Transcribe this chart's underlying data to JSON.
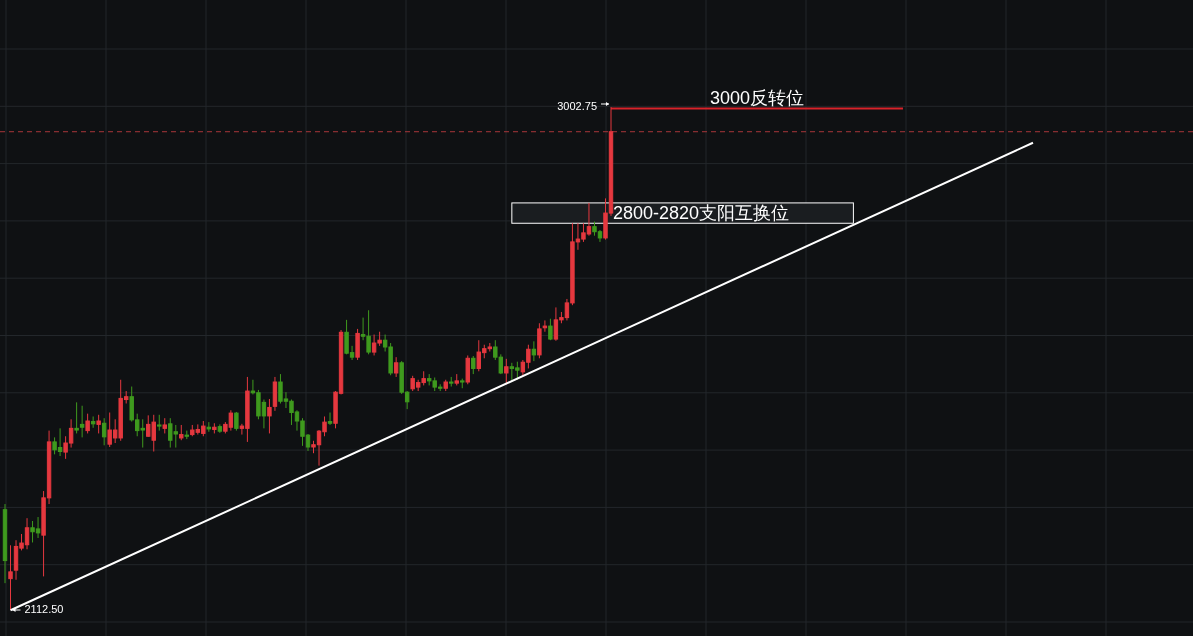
{
  "chart_data": {
    "type": "candlestick",
    "categories": [
      null,
      null,
      null,
      null,
      null,
      null,
      null,
      null,
      null,
      null,
      null,
      null,
      null,
      null,
      null,
      null,
      null,
      null,
      null,
      null,
      null,
      null,
      null,
      null,
      null,
      null,
      null,
      null,
      null,
      null,
      null,
      null,
      null,
      null,
      null,
      null,
      null,
      null,
      null,
      null,
      null,
      null,
      null,
      null,
      null,
      null,
      null,
      null,
      null,
      null,
      null,
      null,
      null,
      null,
      null,
      null,
      null,
      null,
      null,
      null,
      null,
      null,
      null,
      null,
      null,
      null,
      null,
      null,
      null,
      null,
      null,
      null,
      null,
      null,
      null,
      null,
      null,
      null,
      null,
      null,
      null,
      null,
      null,
      null,
      null,
      null,
      null,
      null,
      null,
      null,
      null,
      null,
      null,
      null,
      null,
      null,
      null,
      null,
      null,
      null,
      null,
      null,
      null,
      null,
      null,
      null,
      null,
      null,
      null,
      null,
      null
    ],
    "ohlc": [
      [
        2290,
        2300,
        2160,
        2200
      ],
      [
        2168,
        2227,
        2112.5,
        2180
      ],
      [
        2183,
        2236,
        2166,
        2225
      ],
      [
        2222,
        2247,
        2218,
        2231
      ],
      [
        2228,
        2275,
        2220,
        2258
      ],
      [
        2258,
        2270,
        2232,
        2251
      ],
      [
        2256,
        2277,
        2240,
        2249
      ],
      [
        2245,
        2323,
        2172,
        2311
      ],
      [
        2311,
        2430,
        2300,
        2410
      ],
      [
        2410,
        2418,
        2388,
        2396
      ],
      [
        2400,
        2434,
        2385,
        2393
      ],
      [
        2392,
        2420,
        2380,
        2408
      ],
      [
        2408,
        2450,
        2400,
        2434
      ],
      [
        2434,
        2480,
        2425,
        2431
      ],
      [
        2441,
        2474,
        2418,
        2436
      ],
      [
        2430,
        2460,
        2425,
        2447
      ],
      [
        2446,
        2455,
        2435,
        2442
      ],
      [
        2441,
        2458,
        2425,
        2447
      ],
      [
        2443,
        2452,
        2404,
        2419
      ],
      [
        2406,
        2462,
        2401,
        2431
      ],
      [
        2417,
        2450,
        2408,
        2431
      ],
      [
        2417,
        2520,
        2412,
        2487
      ],
      [
        2485,
        2500,
        2478,
        2490
      ],
      [
        2490,
        2508,
        2446,
        2449
      ],
      [
        2449,
        2460,
        2420,
        2430
      ],
      [
        2434,
        2450,
        2400,
        2431
      ],
      [
        2420,
        2457,
        2419,
        2441
      ],
      [
        2413,
        2458,
        2393,
        2445
      ],
      [
        2440,
        2458,
        2430,
        2438
      ],
      [
        2434,
        2452,
        2425,
        2440
      ],
      [
        2442,
        2452,
        2400,
        2413
      ],
      [
        2428,
        2440,
        2400,
        2424
      ],
      [
        2417,
        2440,
        2413,
        2423
      ],
      [
        2422,
        2430,
        2415,
        2420
      ],
      [
        2423,
        2440,
        2420,
        2431
      ],
      [
        2427,
        2441,
        2423,
        2432
      ],
      [
        2425,
        2447,
        2420,
        2438
      ],
      [
        2436,
        2445,
        2428,
        2433
      ],
      [
        2432,
        2443,
        2425,
        2436
      ],
      [
        2437,
        2441,
        2426,
        2429
      ],
      [
        2429,
        2445,
        2425,
        2441
      ],
      [
        2436,
        2466,
        2430,
        2461
      ],
      [
        2461,
        2463,
        2430,
        2434
      ],
      [
        2434,
        2442,
        2423,
        2438
      ],
      [
        2434,
        2525,
        2410,
        2500
      ],
      [
        2500,
        2520,
        2494,
        2497
      ],
      [
        2497,
        2502,
        2450,
        2456
      ],
      [
        2480,
        2485,
        2434,
        2456
      ],
      [
        2456,
        2486,
        2425,
        2471
      ],
      [
        2473,
        2525,
        2465,
        2516
      ],
      [
        2516,
        2530,
        2478,
        2482
      ],
      [
        2486,
        2498,
        2470,
        2482
      ],
      [
        2482,
        2485,
        2440,
        2462
      ],
      [
        2463,
        2466,
        2430,
        2447
      ],
      [
        2447,
        2452,
        2403,
        2420
      ],
      [
        2422,
        2424,
        2394,
        2401
      ],
      [
        2401,
        2412,
        2390,
        2405
      ],
      [
        2405,
        2431,
        2368,
        2429
      ],
      [
        2428,
        2455,
        2420,
        2445
      ],
      [
        2446,
        2462,
        2440,
        2443
      ],
      [
        2443,
        2500,
        2434,
        2498
      ],
      [
        2496,
        2608,
        2494,
        2604
      ],
      [
        2604,
        2626,
        2565,
        2567
      ],
      [
        2568,
        2580,
        2555,
        2560
      ],
      [
        2560,
        2610,
        2555,
        2602
      ],
      [
        2600,
        2630,
        2590,
        2597
      ],
      [
        2597,
        2643,
        2565,
        2569
      ],
      [
        2569,
        2600,
        2563,
        2585
      ],
      [
        2585,
        2605,
        2580,
        2590
      ],
      [
        2590,
        2600,
        2570,
        2578
      ],
      [
        2578,
        2585,
        2528,
        2532
      ],
      [
        2532,
        2560,
        2525,
        2550
      ],
      [
        2550,
        2553,
        2495,
        2498
      ],
      [
        2498,
        2500,
        2468,
        2481
      ],
      [
        2504,
        2527,
        2500,
        2522
      ],
      [
        2507,
        2520,
        2500,
        2515
      ],
      [
        2515,
        2535,
        2510,
        2522
      ],
      [
        2522,
        2530,
        2510,
        2518
      ],
      [
        2518,
        2524,
        2500,
        2507
      ],
      [
        2507,
        2512,
        2500,
        2505
      ],
      [
        2505,
        2520,
        2500,
        2516
      ],
      [
        2516,
        2525,
        2508,
        2514
      ],
      [
        2514,
        2530,
        2510,
        2518
      ],
      [
        2518,
        2522,
        2505,
        2516
      ],
      [
        2516,
        2563,
        2512,
        2558
      ],
      [
        2558,
        2562,
        2530,
        2540
      ],
      [
        2540,
        2590,
        2535,
        2569
      ],
      [
        2568,
        2582,
        2558,
        2575
      ],
      [
        2575,
        2585,
        2570,
        2578
      ],
      [
        2578,
        2590,
        2555,
        2560
      ],
      [
        2560,
        2565,
        2530,
        2532
      ],
      [
        2532,
        2557,
        2512,
        2543
      ],
      [
        2543,
        2550,
        2518,
        2540
      ],
      [
        2541,
        2552,
        2520,
        2537
      ],
      [
        2534,
        2555,
        2528,
        2551
      ],
      [
        2551,
        2582,
        2540,
        2574
      ],
      [
        2574,
        2588,
        2553,
        2564
      ],
      [
        2564,
        2620,
        2558,
        2610
      ],
      [
        2612,
        2625,
        2605,
        2615
      ],
      [
        2615,
        2628,
        2590,
        2592
      ],
      [
        2592,
        2648,
        2589,
        2626
      ],
      [
        2626,
        2640,
        2620,
        2630
      ],
      [
        2630,
        2663,
        2625,
        2656
      ],
      [
        2656,
        2797,
        2652,
        2764
      ],
      [
        2764,
        2797,
        2750,
        2769
      ],
      [
        2769,
        2797,
        2764,
        2780
      ],
      [
        2778,
        2833,
        2775,
        2791
      ],
      [
        2791,
        2800,
        2775,
        2782
      ],
      [
        2782,
        2785,
        2764,
        2771
      ],
      [
        2771,
        2841,
        2768,
        2815
      ],
      [
        2815,
        3002.75,
        2810,
        2959
      ]
    ],
    "colors": [
      "#3f9a1e",
      "#e5383f",
      "#e5383f",
      "#e5383f",
      "#e5383f",
      "#3f9a1e",
      "#3f9a1e",
      "#e5383f",
      "#e5383f",
      "#3f9a1e",
      "#3f9a1e",
      "#e5383f",
      "#e5383f",
      "#3f9a1e",
      "#3f9a1e",
      "#e5383f",
      "#3f9a1e",
      "#e5383f",
      "#3f9a1e",
      "#e5383f",
      "#e5383f",
      "#e5383f",
      "#e5383f",
      "#3f9a1e",
      "#3f9a1e",
      "#3f9a1e",
      "#e5383f",
      "#e5383f",
      "#3f9a1e",
      "#e5383f",
      "#3f9a1e",
      "#3f9a1e",
      "#e5383f",
      "#3f9a1e",
      "#e5383f",
      "#e5383f",
      "#e5383f",
      "#3f9a1e",
      "#e5383f",
      "#3f9a1e",
      "#e5383f",
      "#e5383f",
      "#3f9a1e",
      "#e5383f",
      "#e5383f",
      "#3f9a1e",
      "#3f9a1e",
      "#3f9a1e",
      "#e5383f",
      "#e5383f",
      "#3f9a1e",
      "#3f9a1e",
      "#3f9a1e",
      "#3f9a1e",
      "#3f9a1e",
      "#3f9a1e",
      "#e5383f",
      "#e5383f",
      "#e5383f",
      "#3f9a1e",
      "#e5383f",
      "#e5383f",
      "#3f9a1e",
      "#3f9a1e",
      "#e5383f",
      "#3f9a1e",
      "#3f9a1e",
      "#e5383f",
      "#e5383f",
      "#3f9a1e",
      "#3f9a1e",
      "#e5383f",
      "#3f9a1e",
      "#3f9a1e",
      "#e5383f",
      "#e5383f",
      "#e5383f",
      "#3f9a1e",
      "#3f9a1e",
      "#3f9a1e",
      "#e5383f",
      "#3f9a1e",
      "#e5383f",
      "#3f9a1e",
      "#e5383f",
      "#3f9a1e",
      "#e5383f",
      "#e5383f",
      "#e5383f",
      "#3f9a1e",
      "#3f9a1e",
      "#e5383f",
      "#3f9a1e",
      "#3f9a1e",
      "#e5383f",
      "#e5383f",
      "#3f9a1e",
      "#e5383f",
      "#e5383f",
      "#3f9a1e",
      "#e5383f",
      "#e5383f",
      "#e5383f",
      "#e5383f",
      "#e5383f",
      "#e5383f",
      "#e5383f",
      "#3f9a1e",
      "#3f9a1e",
      "#e5383f",
      "#e5383f"
    ],
    "series": [
      {
        "type": "line",
        "values": [
          null,
          2112,
          null,
          null,
          null,
          null,
          null,
          null,
          null,
          null,
          null,
          null,
          null,
          null,
          null,
          null,
          null,
          null,
          null,
          null,
          null,
          null,
          null,
          null,
          null,
          null,
          null,
          null,
          null,
          null,
          null,
          null,
          null,
          null,
          null,
          null,
          null,
          null,
          null,
          null,
          null,
          null,
          null,
          null,
          null,
          null,
          null,
          null,
          null,
          null,
          null,
          null,
          null,
          null,
          null,
          null,
          null,
          null,
          null,
          null,
          null,
          null,
          null,
          null,
          null,
          null,
          null,
          null,
          null,
          null,
          null,
          null,
          null,
          null,
          null,
          null,
          null,
          null,
          null,
          null,
          null,
          null,
          null,
          null,
          null,
          null,
          null,
          null,
          null,
          null,
          null,
          null,
          null,
          null,
          null,
          null,
          null,
          null,
          null,
          null,
          null,
          null,
          null,
          null,
          null,
          null,
          null,
          null,
          null,
          null,
          2598
        ],
        "color": "#ffffff"
      }
    ],
    "ref_lines": [
      {
        "axis": "y",
        "value": 3000,
        "label": "3000反转位",
        "color": "#d8232a",
        "line_style": "solid"
      },
      {
        "axis": "y",
        "value": 2959,
        "color": "#a8363a",
        "line_style": "dashed"
      }
    ],
    "bands": [
      {
        "axis": "y",
        "from": 2797,
        "to": 2833,
        "label": "2800-2820支阳互换位",
        "color": "#ffffff"
      }
    ],
    "annotations": [
      "3002.75",
      "2112.50"
    ],
    "grid": true
  }
}
